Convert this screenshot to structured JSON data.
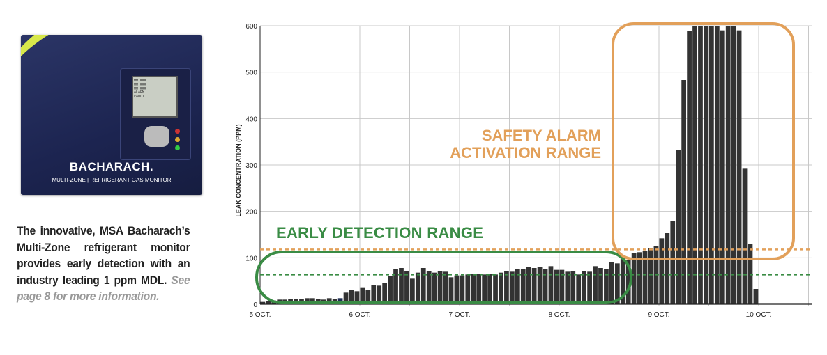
{
  "product": {
    "brand": "BACHARACH.",
    "subtitle": "MULTI-ZONE | REFRIGERANT GAS MONITOR",
    "lcd_text": [
      "ALARM",
      "FAULT"
    ]
  },
  "caption": {
    "main": "The innovative, MSA Bacharach’s Multi-Zone refrigerant monitor provides early detection with an industry leading 1 ppm MDL.",
    "more": "See page 8 for more information."
  },
  "colors": {
    "bar": "#333333",
    "green": "#3a8c45",
    "orange": "#e2a05a",
    "grid": "#c8c8c8"
  },
  "chart_data": {
    "type": "bar",
    "ylabel": "LEAK CONCENTRATION (PPM)",
    "ylim": [
      0,
      600
    ],
    "yticks": [
      0,
      100,
      200,
      300,
      400,
      500,
      600
    ],
    "x_start_day": 5,
    "bars_per_day": 18,
    "xticks": [
      {
        "day": 5,
        "label": "5 OCT."
      },
      {
        "day": 6,
        "label": "6 OCT."
      },
      {
        "day": 7,
        "label": "7 OCT."
      },
      {
        "day": 8,
        "label": "8 OCT."
      },
      {
        "day": 9,
        "label": "9 OCT."
      },
      {
        "day": 10,
        "label": "10 OCT."
      }
    ],
    "xlim_days": [
      5,
      10.55
    ],
    "values": [
      5,
      7,
      8,
      10,
      10,
      12,
      12,
      12,
      13,
      13,
      12,
      10,
      13,
      12,
      13,
      25,
      30,
      28,
      35,
      30,
      42,
      40,
      45,
      60,
      75,
      78,
      72,
      55,
      68,
      78,
      72,
      68,
      72,
      70,
      58,
      62,
      62,
      64,
      66,
      66,
      64,
      66,
      64,
      68,
      72,
      70,
      75,
      76,
      80,
      78,
      80,
      76,
      82,
      74,
      74,
      70,
      72,
      64,
      72,
      70,
      82,
      78,
      75,
      90,
      88,
      100,
      96,
      110,
      112,
      115,
      120,
      125,
      142,
      153,
      180,
      333,
      483,
      588,
      600,
      600,
      600,
      600,
      600,
      590,
      600,
      600,
      590,
      292,
      129,
      33
    ],
    "highlight_index": 14,
    "thresholds": [
      {
        "name": "alarm",
        "value": 118,
        "color": "#e2a05a"
      },
      {
        "name": "early",
        "value": 64,
        "color": "#3a8c45"
      }
    ],
    "annotations": {
      "early": "EARLY DETECTION RANGE",
      "alarm_line1": "SAFETY ALARM",
      "alarm_line2": "ACTIVATION RANGE"
    }
  }
}
